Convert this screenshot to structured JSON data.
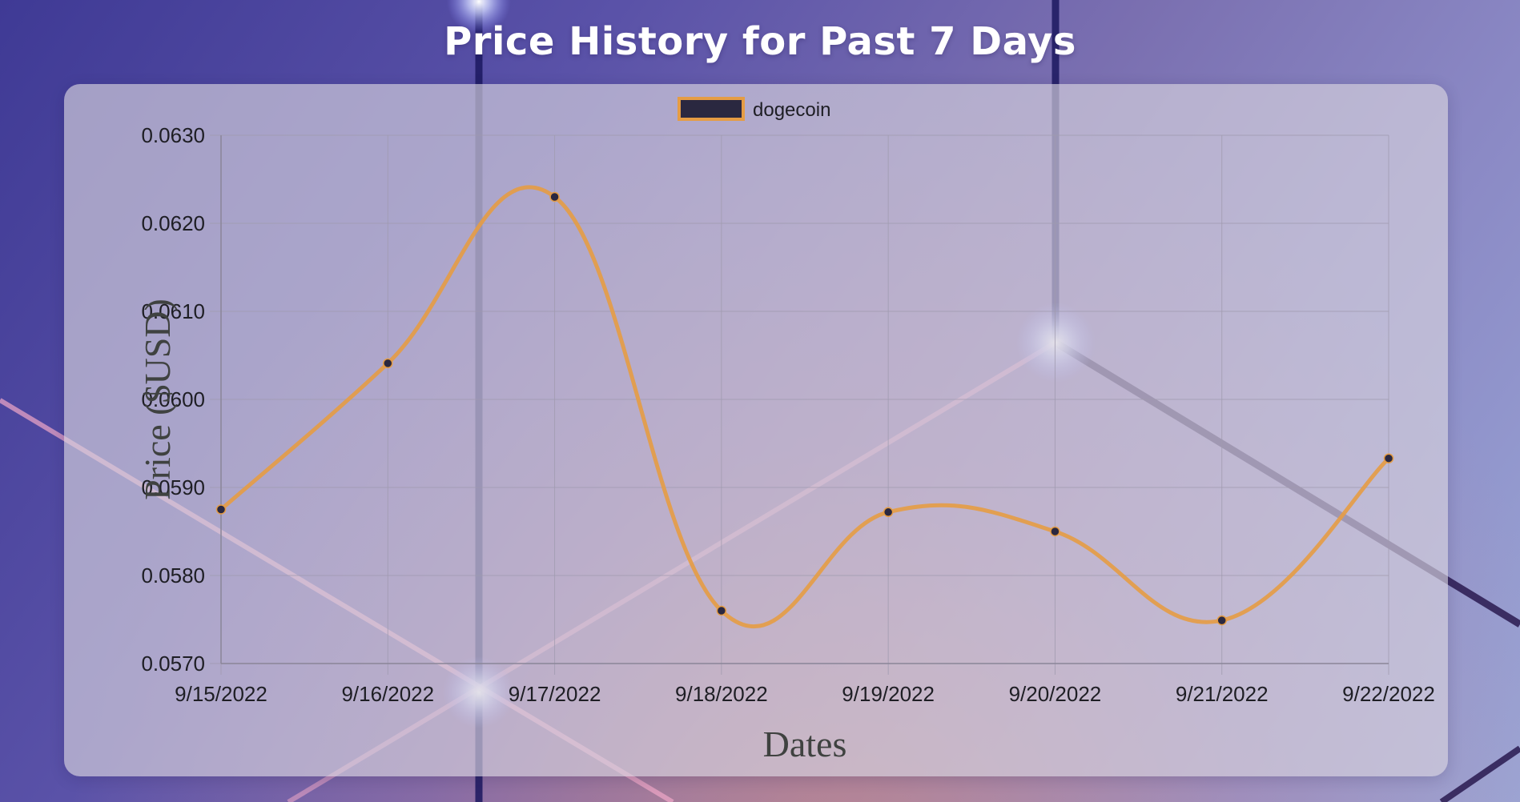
{
  "page": {
    "title": "Price History for Past 7 Days"
  },
  "chart_data": {
    "type": "line",
    "title": "Price History for Past 7 Days",
    "xlabel": "Dates",
    "ylabel": "Price ($USD)",
    "ylim": [
      0.057,
      0.063
    ],
    "yticks": [
      "0.0570",
      "0.0580",
      "0.0590",
      "0.0600",
      "0.0610",
      "0.0620",
      "0.0630"
    ],
    "categories": [
      "9/15/2022",
      "9/16/2022",
      "9/17/2022",
      "9/18/2022",
      "9/19/2022",
      "9/20/2022",
      "9/21/2022",
      "9/22/2022"
    ],
    "series": [
      {
        "name": "dogecoin",
        "values": [
          0.05875,
          0.06041,
          0.0623,
          0.0576,
          0.05872,
          0.0585,
          0.05749,
          0.05933
        ],
        "line_color": "#e59c44",
        "point_color": "#2a2840"
      }
    ],
    "legend_position": "top",
    "grid": true
  },
  "colors": {
    "legend_fill": "#2a2840",
    "legend_border": "#e59c44",
    "tick_text": "#1e1e24",
    "axis_title": "#3f4240",
    "grid": "#9f9aae"
  }
}
